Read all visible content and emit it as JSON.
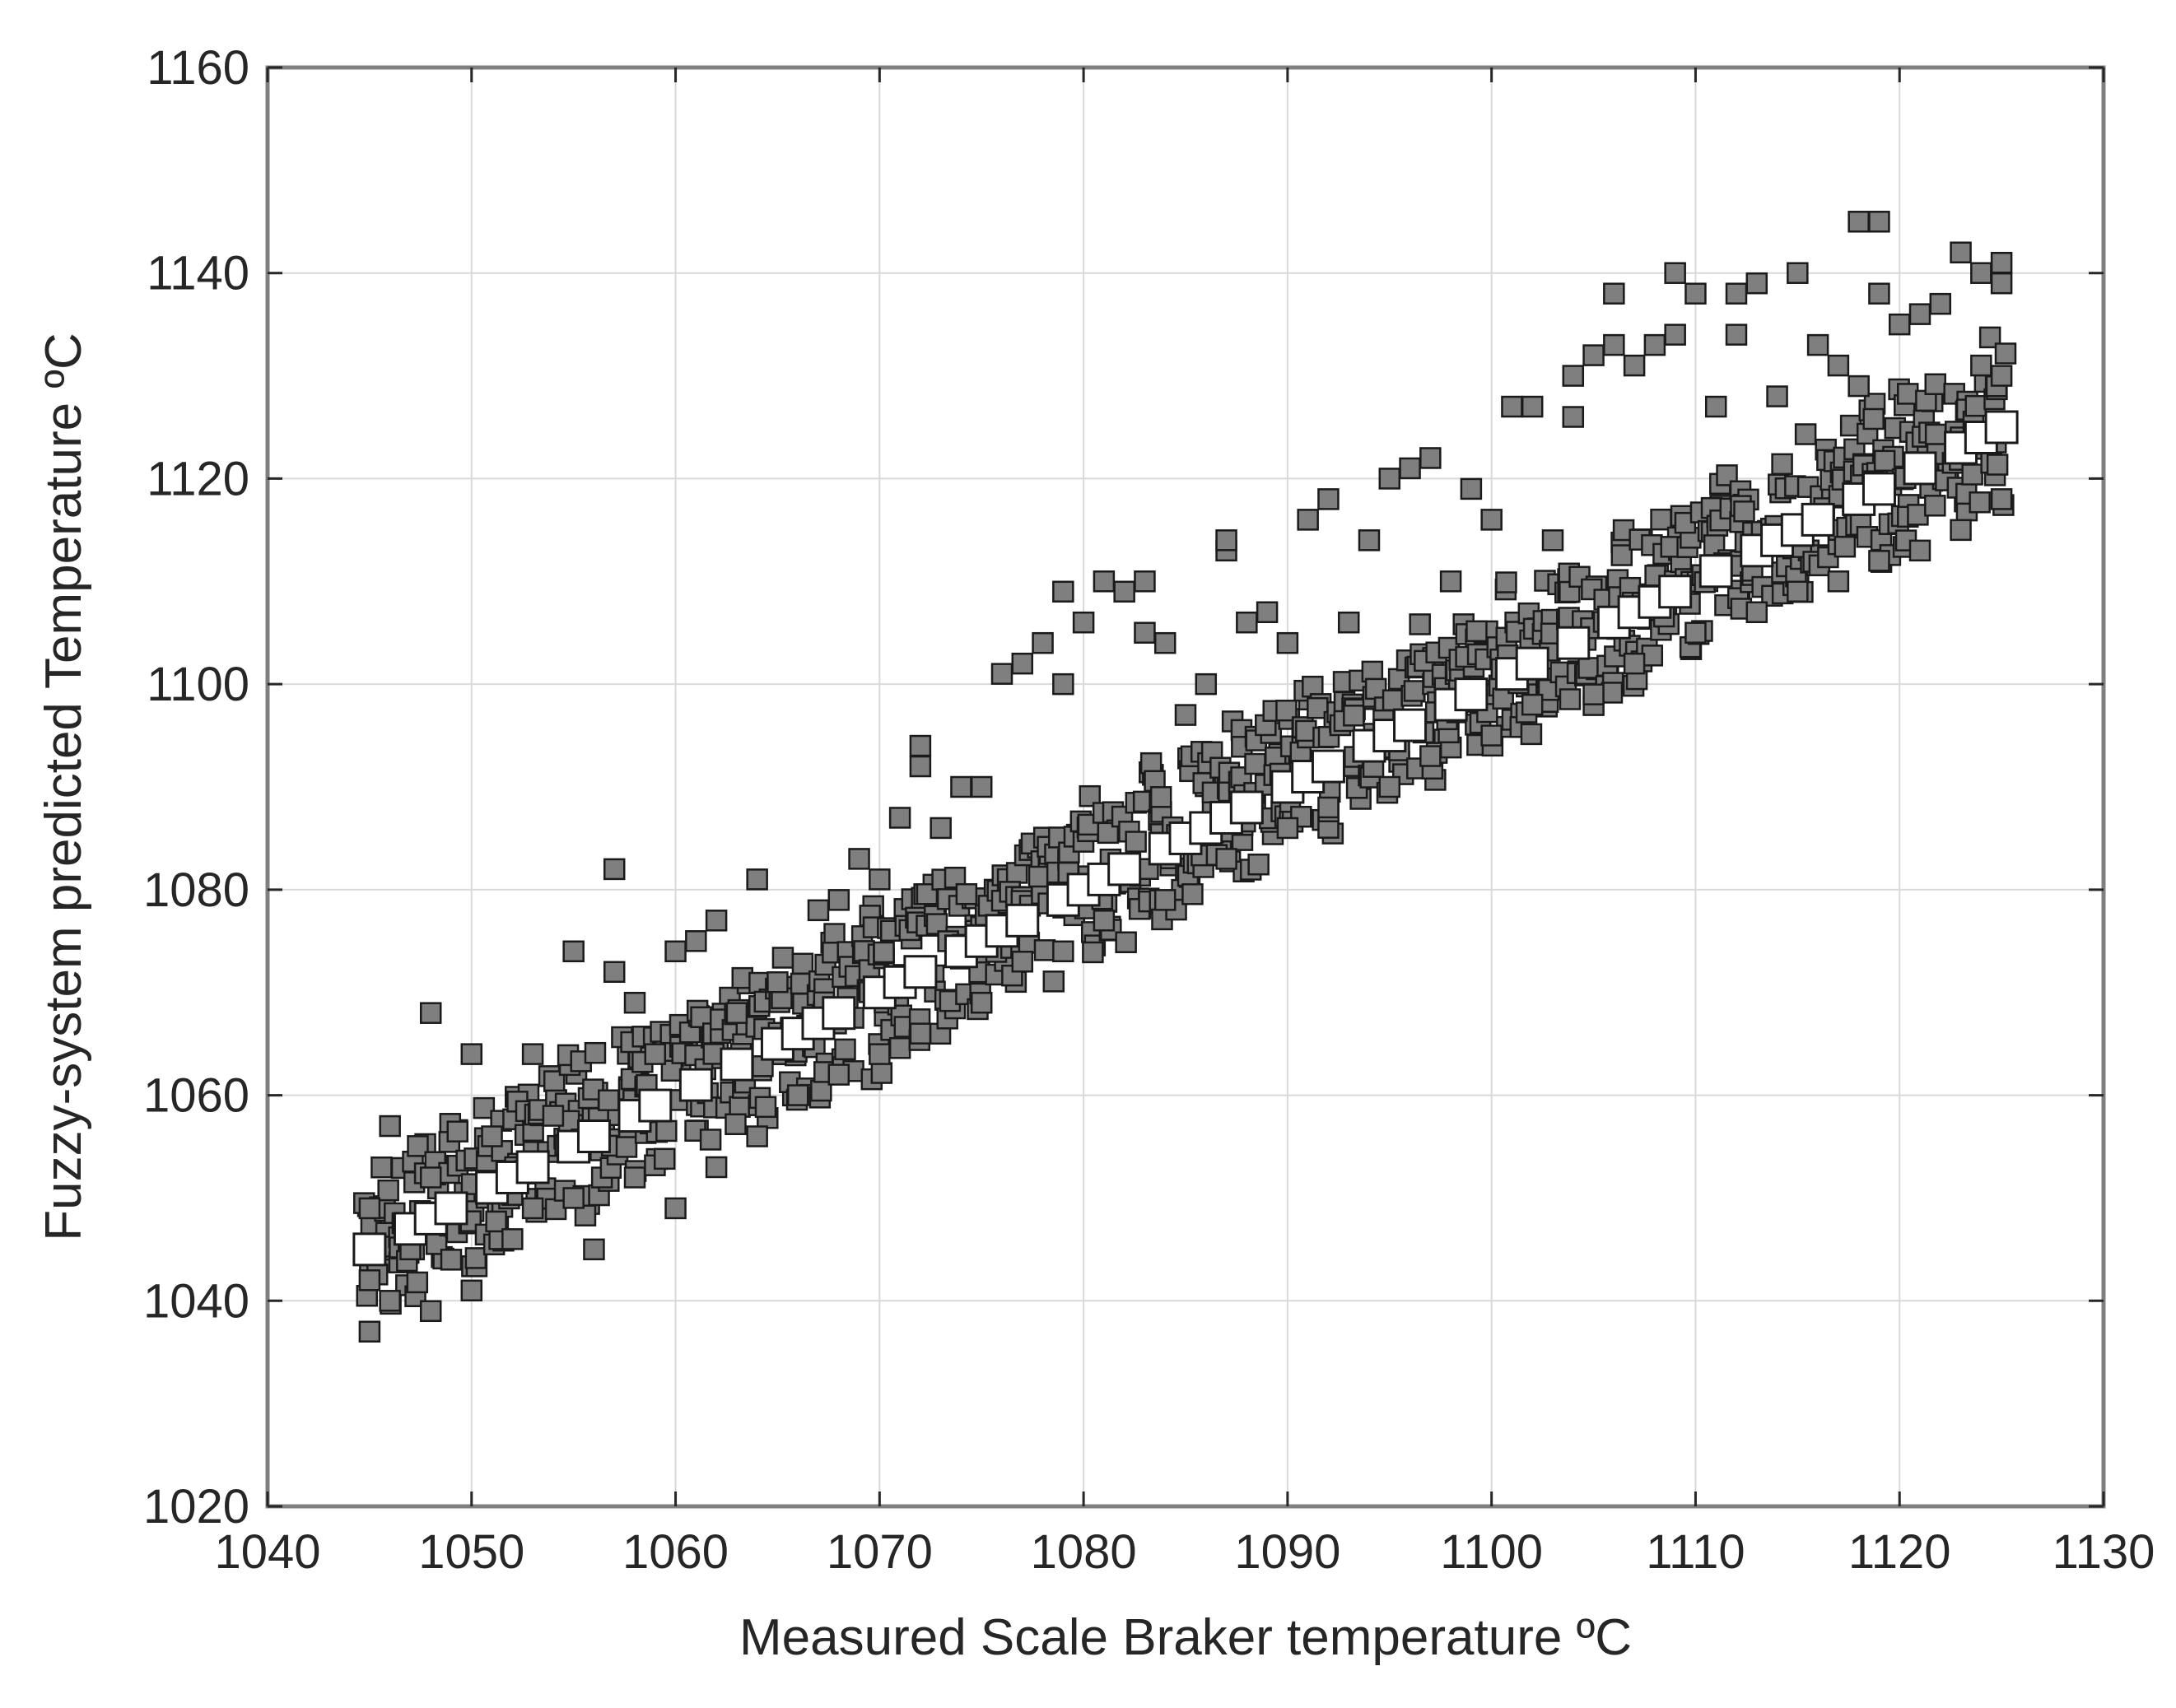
{
  "chart_data": {
    "type": "scatter",
    "title": "",
    "xlabel": "Measured Scale Braker temperature ºC",
    "ylabel": "Fuzzy-system predicted Temperature ºC",
    "xlim": [
      1040,
      1130
    ],
    "ylim": [
      1020,
      1160
    ],
    "xticks": [
      "1040",
      "1050",
      "1060",
      "1070",
      "1080",
      "1090",
      "1100",
      "1110",
      "1120",
      "1130"
    ],
    "yticks": [
      "1020",
      "1040",
      "1060",
      "1080",
      "1100",
      "1120",
      "1140",
      "1160"
    ],
    "grid": true,
    "legend": false,
    "series": [
      {
        "marker": "filled gray square",
        "color": "#7f7f7f",
        "x_range": [
          1045,
          1125
        ],
        "approx_relation": "y ≈ x with spread about −6 to +6 ºC, upward outliers up to +25 ºC",
        "points": [
          [
            1045,
            1037
          ],
          [
            1045,
            1042
          ],
          [
            1045,
            1049
          ],
          [
            1046,
            1057
          ],
          [
            1046,
            1040
          ],
          [
            1047,
            1045
          ],
          [
            1048,
            1068
          ],
          [
            1048,
            1039
          ],
          [
            1048,
            1052
          ],
          [
            1049,
            1044
          ],
          [
            1050,
            1064
          ],
          [
            1050,
            1041
          ],
          [
            1051,
            1056
          ],
          [
            1052,
            1046
          ],
          [
            1053,
            1064
          ],
          [
            1053,
            1049
          ],
          [
            1054,
            1058
          ],
          [
            1055,
            1074
          ],
          [
            1055,
            1050
          ],
          [
            1056,
            1045
          ],
          [
            1057,
            1082
          ],
          [
            1057,
            1072
          ],
          [
            1058,
            1069
          ],
          [
            1058,
            1052
          ],
          [
            1059,
            1064
          ],
          [
            1060,
            1074
          ],
          [
            1060,
            1049
          ],
          [
            1061,
            1075
          ],
          [
            1062,
            1077
          ],
          [
            1062,
            1053
          ],
          [
            1063,
            1068
          ],
          [
            1064,
            1081
          ],
          [
            1064,
            1056
          ],
          [
            1065,
            1071
          ],
          [
            1066,
            1060
          ],
          [
            1067,
            1078
          ],
          [
            1068,
            1079
          ],
          [
            1068,
            1062
          ],
          [
            1069,
            1083
          ],
          [
            1070,
            1081
          ],
          [
            1070,
            1064
          ],
          [
            1071,
            1087
          ],
          [
            1072,
            1094
          ],
          [
            1072,
            1092
          ],
          [
            1072,
            1066
          ],
          [
            1073,
            1086
          ],
          [
            1074,
            1090
          ],
          [
            1075,
            1090
          ],
          [
            1075,
            1069
          ],
          [
            1076,
            1101
          ],
          [
            1077,
            1102
          ],
          [
            1077,
            1073
          ],
          [
            1078,
            1104
          ],
          [
            1079,
            1109
          ],
          [
            1079,
            1100
          ],
          [
            1079,
            1074
          ],
          [
            1080,
            1106
          ],
          [
            1081,
            1110
          ],
          [
            1081,
            1077
          ],
          [
            1082,
            1109
          ],
          [
            1083,
            1110
          ],
          [
            1083,
            1105
          ],
          [
            1084,
            1104
          ],
          [
            1084,
            1079
          ],
          [
            1085,
            1097
          ],
          [
            1086,
            1100
          ],
          [
            1087,
            1113
          ],
          [
            1087,
            1114
          ],
          [
            1087,
            1083
          ],
          [
            1088,
            1106
          ],
          [
            1089,
            1107
          ],
          [
            1090,
            1104
          ],
          [
            1090,
            1086
          ],
          [
            1091,
            1116
          ],
          [
            1092,
            1118
          ],
          [
            1092,
            1088
          ],
          [
            1093,
            1106
          ],
          [
            1094,
            1114
          ],
          [
            1095,
            1120
          ],
          [
            1095,
            1090
          ],
          [
            1096,
            1121
          ],
          [
            1097,
            1122
          ],
          [
            1097,
            1093
          ],
          [
            1098,
            1110
          ],
          [
            1099,
            1119
          ],
          [
            1100,
            1116
          ],
          [
            1100,
            1095
          ],
          [
            1101,
            1127
          ],
          [
            1102,
            1127
          ],
          [
            1102,
            1098
          ],
          [
            1103,
            1114
          ],
          [
            1104,
            1126
          ],
          [
            1104,
            1130
          ],
          [
            1105,
            1132
          ],
          [
            1105,
            1099
          ],
          [
            1106,
            1138
          ],
          [
            1106,
            1133
          ],
          [
            1107,
            1131
          ],
          [
            1107,
            1102
          ],
          [
            1108,
            1133
          ],
          [
            1109,
            1140
          ],
          [
            1109,
            1134
          ],
          [
            1110,
            1138
          ],
          [
            1110,
            1105
          ],
          [
            1111,
            1127
          ],
          [
            1112,
            1138
          ],
          [
            1112,
            1134
          ],
          [
            1113,
            1139
          ],
          [
            1113,
            1107
          ],
          [
            1114,
            1128
          ],
          [
            1115,
            1140
          ],
          [
            1115,
            1109
          ],
          [
            1116,
            1133
          ],
          [
            1117,
            1131
          ],
          [
            1117,
            1110
          ],
          [
            1118,
            1145
          ],
          [
            1118,
            1129
          ],
          [
            1119,
            1145
          ],
          [
            1119,
            1138
          ],
          [
            1119,
            1112
          ],
          [
            1120,
            1135
          ],
          [
            1121,
            1136
          ],
          [
            1121,
            1113
          ],
          [
            1122,
            1137
          ],
          [
            1123,
            1142
          ],
          [
            1123,
            1115
          ],
          [
            1124,
            1140
          ],
          [
            1124,
            1131
          ],
          [
            1125,
            1141
          ],
          [
            1125,
            1139
          ],
          [
            1125,
            1130
          ],
          [
            1125,
            1118
          ]
        ]
      },
      {
        "marker": "open white square",
        "color": "#ffffff",
        "relation": "y = x",
        "x": [
          1045,
          1047,
          1048,
          1049,
          1051,
          1052,
          1053,
          1055,
          1056,
          1058,
          1059,
          1061,
          1063,
          1065,
          1066,
          1067,
          1068,
          1070,
          1071,
          1072,
          1074,
          1075,
          1076,
          1077,
          1079,
          1080,
          1081,
          1082,
          1084,
          1085,
          1086,
          1087,
          1088,
          1090,
          1091,
          1092,
          1094,
          1095,
          1096,
          1098,
          1099,
          1101,
          1102,
          1104,
          1106,
          1107,
          1108,
          1109,
          1111,
          1113,
          1114,
          1115,
          1116,
          1118,
          1119,
          1121,
          1123,
          1124,
          1125
        ],
        "y": [
          1045,
          1047,
          1048,
          1049,
          1051,
          1052,
          1053,
          1055,
          1056,
          1058,
          1059,
          1061,
          1063,
          1065,
          1066,
          1067,
          1068,
          1070,
          1071,
          1072,
          1074,
          1075,
          1076,
          1077,
          1079,
          1080,
          1081,
          1082,
          1084,
          1085,
          1086,
          1087,
          1088,
          1090,
          1091,
          1092,
          1094,
          1095,
          1096,
          1098,
          1099,
          1101,
          1102,
          1104,
          1106,
          1107,
          1108,
          1109,
          1111,
          1113,
          1114,
          1115,
          1116,
          1118,
          1119,
          1121,
          1123,
          1124,
          1125
        ]
      }
    ]
  }
}
